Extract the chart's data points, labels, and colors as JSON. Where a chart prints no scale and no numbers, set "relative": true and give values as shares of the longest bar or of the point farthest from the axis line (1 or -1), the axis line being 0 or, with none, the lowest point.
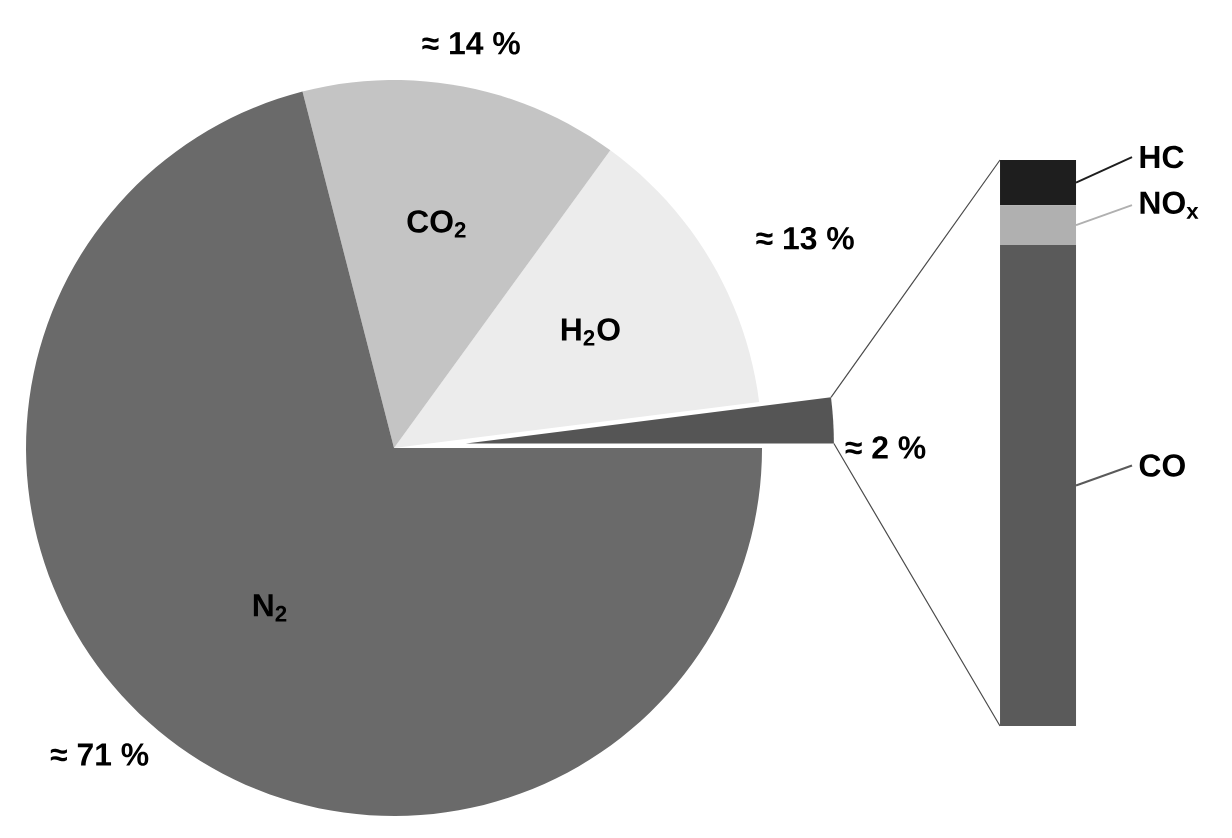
{
  "chart_data": [
    {
      "type": "pie",
      "categories": [
        null,
        "H$_{2}$O",
        "CO$_{2}$",
        "N$_{2}$"
      ],
      "values": [
        2,
        13,
        14,
        71
      ],
      "colors": [
        "#555555",
        "#ececec",
        "#c4c4c4",
        "#6a6a6a"
      ],
      "value_labels": [
        "≈ 2 %",
        "≈ 13 %",
        "≈ 14 %",
        "≈ 71 %"
      ]
    },
    {
      "type": "bar",
      "stacked": true,
      "relative": true,
      "legend": "right",
      "categories": [
        null
      ],
      "series": [
        {
          "name": "CO",
          "color": "#5a5a5a",
          "values": [
            0.85
          ]
        },
        {
          "name": "NO$_{x}$",
          "color": "#b0b0b0",
          "values": [
            0.07
          ]
        },
        {
          "name": "HC",
          "color": "#1e1e1e",
          "values": [
            0.08
          ]
        }
      ]
    }
  ]
}
